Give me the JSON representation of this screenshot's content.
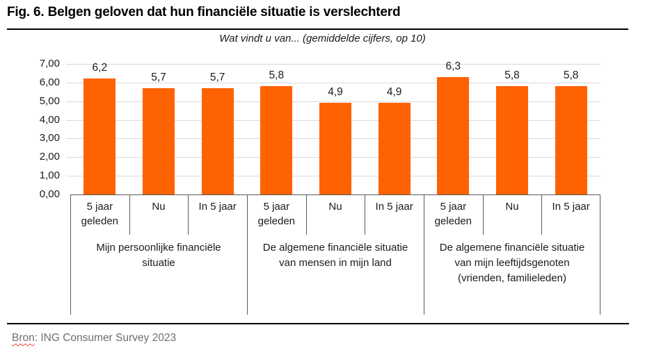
{
  "figure": {
    "title": "Fig. 6. Belgen geloven dat hun financiële situatie is verslechterd",
    "source_word": "Bron",
    "source_rest": ": ING Consumer Survey 2023"
  },
  "chart_data": {
    "type": "bar",
    "title": "Wat vindt u van... (gemiddelde cijfers, op 10)",
    "xlabel": "",
    "ylabel": "",
    "ylim": [
      0,
      7
    ],
    "ytick_step": 1,
    "ytick_labels": [
      "0,00",
      "1,00",
      "2,00",
      "3,00",
      "4,00",
      "5,00",
      "6,00",
      "7,00"
    ],
    "grid": true,
    "legend": false,
    "bar_color": "#FF6200",
    "groups": [
      {
        "label": "Mijn persoonlijke financiële situatie",
        "categories": [
          "5 jaar geleden",
          "Nu",
          "In 5 jaar"
        ],
        "values": [
          6.2,
          5.7,
          5.7
        ],
        "value_labels": [
          "6,2",
          "5,7",
          "5,7"
        ]
      },
      {
        "label": "De algemene financiële situatie van mensen in mijn land",
        "categories": [
          "5 jaar geleden",
          "Nu",
          "In 5 jaar"
        ],
        "values": [
          5.8,
          4.9,
          4.9
        ],
        "value_labels": [
          "5,8",
          "4,9",
          "4,9"
        ]
      },
      {
        "label": "De algemene financiële situatie van mijn leeftijdsgenoten (vrienden, familieleden)",
        "categories": [
          "5 jaar geleden",
          "Nu",
          "In 5 jaar"
        ],
        "values": [
          6.3,
          5.8,
          5.8
        ],
        "value_labels": [
          "6,3",
          "5,8",
          "5,8"
        ]
      }
    ]
  },
  "colors": {
    "bar": "#FF6200",
    "gridline": "#D9D9D9",
    "axis_line": "#595959",
    "title_rule": "#000000",
    "source_text": "#6E6E6E",
    "spellcheck_underline": "#E8452C"
  }
}
